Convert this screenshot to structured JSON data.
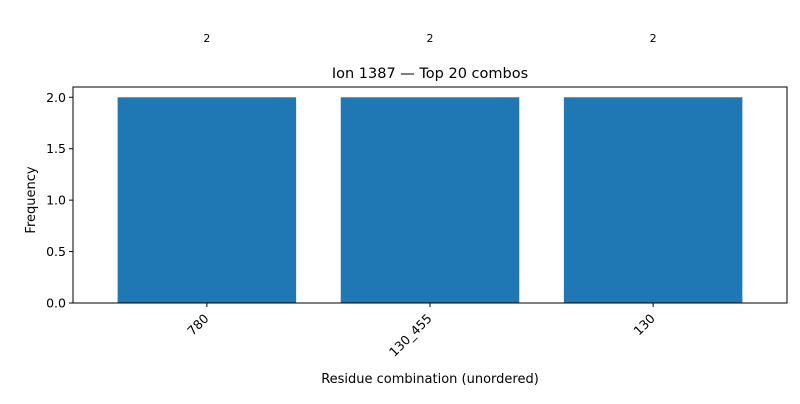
{
  "chart_data": {
    "type": "bar",
    "title": "Ion 1387 — Top 20 combos",
    "xlabel": "Residue combination (unordered)",
    "ylabel": "Frequency",
    "categories": [
      "780",
      "130_455",
      "130"
    ],
    "values": [
      2,
      2,
      2
    ],
    "data_labels": [
      "2",
      "2",
      "2"
    ],
    "ylim": [
      0,
      2.1
    ],
    "yticks": [
      0.0,
      0.5,
      1.0,
      1.5,
      2.0
    ],
    "ytick_labels": [
      "0.0",
      "0.5",
      "1.0",
      "1.5",
      "2.0"
    ],
    "grid": false,
    "legend": "none",
    "colors": {
      "bar": "#1f77b4",
      "axis": "#000000"
    }
  }
}
